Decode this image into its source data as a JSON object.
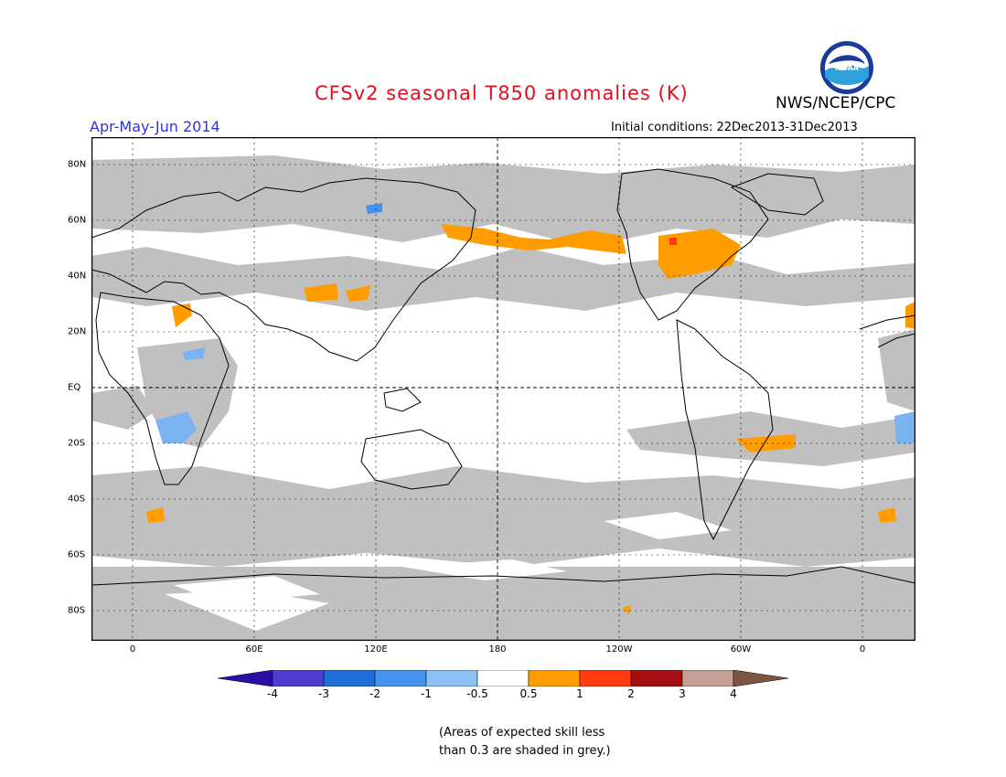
{
  "header": {
    "title": "CFSv2 seasonal T850 anomalies (K)",
    "season": "Apr-May-Jun 2014",
    "agency": "NWS/NCEP/CPC",
    "initial_conditions": "Initial conditions: 22Dec2013-31Dec2013",
    "logo_text": "NOAA"
  },
  "map": {
    "x_ticks": [
      "0",
      "60E",
      "120E",
      "180",
      "120W",
      "60W",
      "0"
    ],
    "y_ticks": [
      "80N",
      "60N",
      "40N",
      "20N",
      "EQ",
      "20S",
      "40S",
      "60S",
      "80S"
    ],
    "colors": {
      "grey_low_skill": "#c0c0c0",
      "orange": "#ff9d00",
      "red_orange": "#ff3b0f",
      "light_blue": "#7ab3ef",
      "blue": "#4492ee",
      "coast": "#000000"
    }
  },
  "colorbar": {
    "labels": [
      "-4",
      "-3",
      "-2",
      "-1",
      "-0.5",
      "0.5",
      "1",
      "2",
      "3",
      "4"
    ],
    "colors": [
      "#2b0ea6",
      "#4e3fd2",
      "#1e6fd8",
      "#4492ee",
      "#8bc1f6",
      "#ffffff",
      "#ff9d00",
      "#ff3b0f",
      "#a60f0f",
      "#c5a195",
      "#7d5542"
    ]
  },
  "note": {
    "line1": "(Areas of expected skill less",
    "line2": "than 0.3 are shaded in grey.)"
  }
}
